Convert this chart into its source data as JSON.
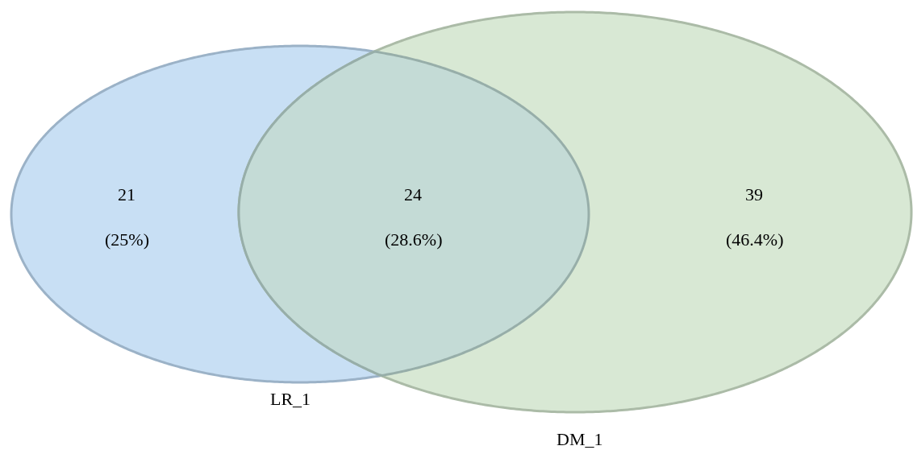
{
  "chart_data": {
    "type": "other",
    "categories": [
      "LR_1",
      null,
      "DM_1"
    ],
    "values": [
      21,
      24,
      39
    ],
    "colors": [
      "#c8dff4",
      "#c4dbd6",
      "#d8e8d4"
    ],
    "data_labels": true,
    "annotations": [
      "(25%)",
      "(28.6%)",
      "(46.4%)"
    ]
  }
}
